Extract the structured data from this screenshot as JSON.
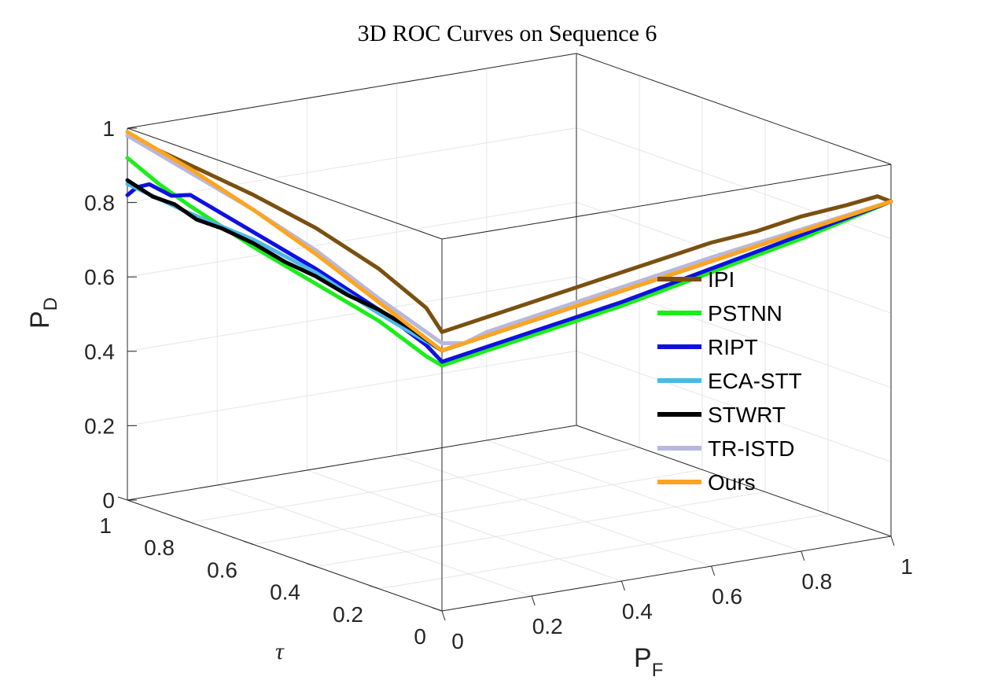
{
  "chart_data": {
    "type": "line",
    "title": "3D ROC Curves on Sequence 6",
    "axes": {
      "x": {
        "label": "P",
        "sub": "F",
        "range": [
          0,
          1
        ],
        "ticks": [
          "0",
          "0.2",
          "0.4",
          "0.6",
          "0.8",
          "1"
        ]
      },
      "y": {
        "label": "τ",
        "range": [
          0,
          1
        ],
        "ticks": [
          "0",
          "0.2",
          "0.4",
          "0.6",
          "0.8",
          "1"
        ]
      },
      "z": {
        "label": "P",
        "sub": "D",
        "range": [
          0,
          1
        ],
        "ticks": [
          "0",
          "0.2",
          "0.4",
          "0.6",
          "0.8",
          "1"
        ]
      }
    },
    "grid": true,
    "legend_position": "right",
    "series": [
      {
        "name": "IPI",
        "color": "#7a5010",
        "tau_pd": [
          [
            1,
            0.98
          ],
          [
            0.8,
            0.96
          ],
          [
            0.6,
            0.94
          ],
          [
            0.4,
            0.91
          ],
          [
            0.2,
            0.86
          ],
          [
            0.05,
            0.8
          ],
          [
            0,
            0.75
          ]
        ],
        "pf_pd": [
          [
            0,
            0.75
          ],
          [
            0.1,
            0.77
          ],
          [
            0.2,
            0.79
          ],
          [
            0.3,
            0.81
          ],
          [
            0.4,
            0.83
          ],
          [
            0.5,
            0.85
          ],
          [
            0.6,
            0.87
          ],
          [
            0.7,
            0.88
          ],
          [
            0.8,
            0.9
          ],
          [
            0.9,
            0.91
          ],
          [
            0.97,
            0.92
          ],
          [
            1,
            0.9
          ]
        ]
      },
      {
        "name": "PSTNN",
        "color": "#1aee1a",
        "tau_pd": [
          [
            1,
            0.92
          ],
          [
            0.9,
            0.88
          ],
          [
            0.8,
            0.85
          ],
          [
            0.6,
            0.8
          ],
          [
            0.4,
            0.76
          ],
          [
            0.2,
            0.72
          ],
          [
            0.05,
            0.67
          ],
          [
            0,
            0.66
          ]
        ],
        "pf_pd": [
          [
            0,
            0.66
          ],
          [
            0.2,
            0.7
          ],
          [
            0.4,
            0.74
          ],
          [
            0.6,
            0.79
          ],
          [
            0.8,
            0.84
          ],
          [
            1,
            0.9
          ]
        ]
      },
      {
        "name": "RIPT",
        "color": "#1010e0",
        "tau_pd": [
          [
            1,
            0.82
          ],
          [
            0.97,
            0.85
          ],
          [
            0.93,
            0.87
          ],
          [
            0.86,
            0.86
          ],
          [
            0.8,
            0.88
          ],
          [
            0.6,
            0.84
          ],
          [
            0.4,
            0.8
          ],
          [
            0.2,
            0.75
          ],
          [
            0.05,
            0.7
          ],
          [
            0,
            0.67
          ]
        ],
        "pf_pd": [
          [
            0,
            0.67
          ],
          [
            0.2,
            0.71
          ],
          [
            0.4,
            0.75
          ],
          [
            0.6,
            0.8
          ],
          [
            0.8,
            0.85
          ],
          [
            1,
            0.9
          ]
        ]
      },
      {
        "name": "ECA-STT",
        "color": "#4cb8e8",
        "tau_pd": [
          [
            1,
            0.85
          ],
          [
            0.8,
            0.83
          ],
          [
            0.6,
            0.82
          ],
          [
            0.4,
            0.79
          ],
          [
            0.2,
            0.74
          ],
          [
            0,
            0.7
          ]
        ],
        "pf_pd": [
          [
            0,
            0.7
          ],
          [
            0.2,
            0.74
          ],
          [
            0.4,
            0.78
          ],
          [
            0.6,
            0.82
          ],
          [
            0.8,
            0.86
          ],
          [
            1,
            0.9
          ]
        ]
      },
      {
        "name": "STWRT",
        "color": "#000000",
        "tau_pd": [
          [
            1,
            0.86
          ],
          [
            0.92,
            0.84
          ],
          [
            0.85,
            0.84
          ],
          [
            0.78,
            0.82
          ],
          [
            0.7,
            0.82
          ],
          [
            0.6,
            0.81
          ],
          [
            0.5,
            0.79
          ],
          [
            0.4,
            0.78
          ],
          [
            0.3,
            0.76
          ],
          [
            0.2,
            0.75
          ],
          [
            0.1,
            0.73
          ],
          [
            0,
            0.7
          ]
        ],
        "pf_pd": [
          [
            0,
            0.7
          ],
          [
            0.2,
            0.74
          ],
          [
            0.4,
            0.78
          ],
          [
            0.6,
            0.82
          ],
          [
            0.8,
            0.86
          ],
          [
            1,
            0.9
          ]
        ]
      },
      {
        "name": "TR-ISTD",
        "color": "#b8b8dc",
        "tau_pd": [
          [
            1,
            0.98
          ],
          [
            0.8,
            0.94
          ],
          [
            0.6,
            0.9
          ],
          [
            0.4,
            0.85
          ],
          [
            0.2,
            0.78
          ],
          [
            0,
            0.72
          ]
        ],
        "pf_pd": [
          [
            0,
            0.72
          ],
          [
            0.05,
            0.71
          ],
          [
            0.1,
            0.73
          ],
          [
            0.3,
            0.77
          ],
          [
            0.6,
            0.83
          ],
          [
            1,
            0.9
          ]
        ]
      },
      {
        "name": "Ours",
        "color": "#ffa51f",
        "tau_pd": [
          [
            1,
            0.99
          ],
          [
            0.8,
            0.95
          ],
          [
            0.6,
            0.9
          ],
          [
            0.4,
            0.84
          ],
          [
            0.2,
            0.77
          ],
          [
            0,
            0.7
          ]
        ],
        "pf_pd": [
          [
            0,
            0.7
          ],
          [
            0.2,
            0.74
          ],
          [
            0.4,
            0.78
          ],
          [
            0.6,
            0.82
          ],
          [
            0.8,
            0.86
          ],
          [
            1,
            0.9
          ]
        ]
      }
    ]
  }
}
